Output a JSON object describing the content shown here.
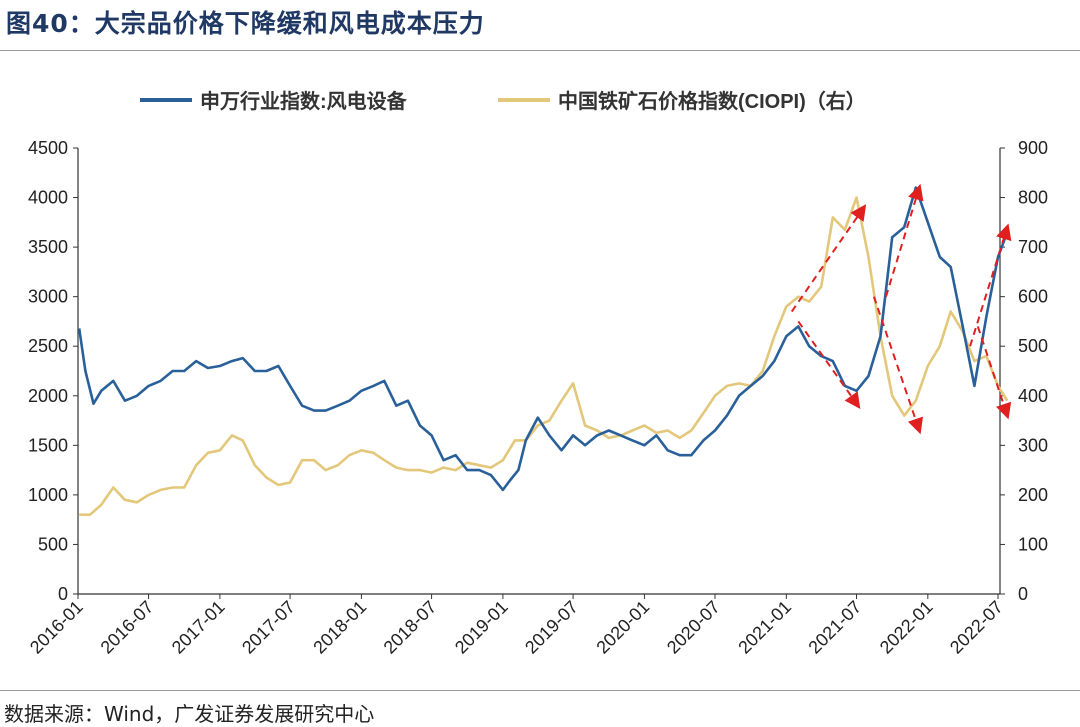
{
  "figure": {
    "title": "图40：大宗品价格下降缓和风电成本压力",
    "source": "数据来源：Wind，广发证券发展研究中心"
  },
  "chart_data": {
    "type": "line",
    "title": "",
    "legend_position": "top",
    "grid": false,
    "x_ticks": [
      "2016-01",
      "2016-07",
      "2017-01",
      "2017-07",
      "2018-01",
      "2018-07",
      "2019-01",
      "2019-07",
      "2020-01",
      "2020-07",
      "2021-01",
      "2021-07",
      "2022-01",
      "2022-07"
    ],
    "y_left": {
      "range": [
        0,
        4500
      ],
      "ticks": [
        "0",
        "500",
        "1000",
        "1500",
        "2000",
        "2500",
        "3000",
        "3500",
        "4000",
        "4500"
      ]
    },
    "y_right": {
      "range": [
        0,
        900
      ],
      "ticks": [
        "0",
        "100",
        "200",
        "300",
        "400",
        "500",
        "600",
        "700",
        "800",
        "900"
      ]
    },
    "series": [
      {
        "name": "申万行业指数:风电设备",
        "axis": "left",
        "color": "#2a6099",
        "points": [
          [
            "2016-01-04",
            2680
          ],
          [
            "2016-01-20",
            2250
          ],
          [
            "2016-02-10",
            1920
          ],
          [
            "2016-03-01",
            2050
          ],
          [
            "2016-04-01",
            2150
          ],
          [
            "2016-05-01",
            1950
          ],
          [
            "2016-06-01",
            2000
          ],
          [
            "2016-07-01",
            2100
          ],
          [
            "2016-08-01",
            2150
          ],
          [
            "2016-09-01",
            2250
          ],
          [
            "2016-10-01",
            2250
          ],
          [
            "2016-11-01",
            2350
          ],
          [
            "2016-12-01",
            2280
          ],
          [
            "2017-01-01",
            2300
          ],
          [
            "2017-02-01",
            2350
          ],
          [
            "2017-03-01",
            2380
          ],
          [
            "2017-04-01",
            2250
          ],
          [
            "2017-05-01",
            2250
          ],
          [
            "2017-06-01",
            2300
          ],
          [
            "2017-07-01",
            2100
          ],
          [
            "2017-08-01",
            1900
          ],
          [
            "2017-09-01",
            1850
          ],
          [
            "2017-10-01",
            1850
          ],
          [
            "2017-11-01",
            1900
          ],
          [
            "2017-12-01",
            1950
          ],
          [
            "2018-01-01",
            2050
          ],
          [
            "2018-02-01",
            2100
          ],
          [
            "2018-03-01",
            2150
          ],
          [
            "2018-04-01",
            1900
          ],
          [
            "2018-05-01",
            1950
          ],
          [
            "2018-06-01",
            1700
          ],
          [
            "2018-07-01",
            1600
          ],
          [
            "2018-08-01",
            1350
          ],
          [
            "2018-09-01",
            1400
          ],
          [
            "2018-10-01",
            1250
          ],
          [
            "2018-11-01",
            1250
          ],
          [
            "2018-12-01",
            1200
          ],
          [
            "2019-01-01",
            1050
          ],
          [
            "2019-01-20",
            1150
          ],
          [
            "2019-02-10",
            1250
          ],
          [
            "2019-03-01",
            1550
          ],
          [
            "2019-04-01",
            1780
          ],
          [
            "2019-05-01",
            1600
          ],
          [
            "2019-06-01",
            1450
          ],
          [
            "2019-07-01",
            1600
          ],
          [
            "2019-08-01",
            1500
          ],
          [
            "2019-09-01",
            1600
          ],
          [
            "2019-10-01",
            1650
          ],
          [
            "2019-11-01",
            1600
          ],
          [
            "2019-12-01",
            1550
          ],
          [
            "2020-01-01",
            1500
          ],
          [
            "2020-02-01",
            1600
          ],
          [
            "2020-03-01",
            1450
          ],
          [
            "2020-04-01",
            1400
          ],
          [
            "2020-05-01",
            1400
          ],
          [
            "2020-06-01",
            1550
          ],
          [
            "2020-07-01",
            1650
          ],
          [
            "2020-08-01",
            1800
          ],
          [
            "2020-09-01",
            2000
          ],
          [
            "2020-10-01",
            2100
          ],
          [
            "2020-11-01",
            2200
          ],
          [
            "2020-12-01",
            2350
          ],
          [
            "2021-01-01",
            2600
          ],
          [
            "2021-02-01",
            2700
          ],
          [
            "2021-03-01",
            2500
          ],
          [
            "2021-04-01",
            2400
          ],
          [
            "2021-05-01",
            2350
          ],
          [
            "2021-06-01",
            2100
          ],
          [
            "2021-07-01",
            2050
          ],
          [
            "2021-08-01",
            2200
          ],
          [
            "2021-09-01",
            2600
          ],
          [
            "2021-10-01",
            3600
          ],
          [
            "2021-11-01",
            3700
          ],
          [
            "2021-12-01",
            4100
          ],
          [
            "2022-01-01",
            3750
          ],
          [
            "2022-02-01",
            3400
          ],
          [
            "2022-03-01",
            3300
          ],
          [
            "2022-04-01",
            2700
          ],
          [
            "2022-05-01",
            2100
          ],
          [
            "2022-06-01",
            2800
          ],
          [
            "2022-07-01",
            3400
          ],
          [
            "2022-07-25",
            3650
          ]
        ]
      },
      {
        "name": "中国铁矿石价格指数(CIOPI)（右）",
        "axis": "right",
        "color": "#e3c77a",
        "points": [
          [
            "2016-01-04",
            160
          ],
          [
            "2016-02-01",
            160
          ],
          [
            "2016-03-01",
            180
          ],
          [
            "2016-04-01",
            215
          ],
          [
            "2016-05-01",
            190
          ],
          [
            "2016-06-01",
            185
          ],
          [
            "2016-07-01",
            200
          ],
          [
            "2016-08-01",
            210
          ],
          [
            "2016-09-01",
            215
          ],
          [
            "2016-10-01",
            215
          ],
          [
            "2016-11-01",
            260
          ],
          [
            "2016-12-01",
            285
          ],
          [
            "2017-01-01",
            290
          ],
          [
            "2017-02-01",
            320
          ],
          [
            "2017-03-01",
            310
          ],
          [
            "2017-04-01",
            260
          ],
          [
            "2017-05-01",
            235
          ],
          [
            "2017-06-01",
            220
          ],
          [
            "2017-07-01",
            225
          ],
          [
            "2017-08-01",
            270
          ],
          [
            "2017-09-01",
            270
          ],
          [
            "2017-10-01",
            250
          ],
          [
            "2017-11-01",
            260
          ],
          [
            "2017-12-01",
            280
          ],
          [
            "2018-01-01",
            290
          ],
          [
            "2018-02-01",
            285
          ],
          [
            "2018-03-01",
            270
          ],
          [
            "2018-04-01",
            255
          ],
          [
            "2018-05-01",
            250
          ],
          [
            "2018-06-01",
            250
          ],
          [
            "2018-07-01",
            245
          ],
          [
            "2018-08-01",
            255
          ],
          [
            "2018-09-01",
            250
          ],
          [
            "2018-10-01",
            265
          ],
          [
            "2018-11-01",
            260
          ],
          [
            "2018-12-01",
            255
          ],
          [
            "2019-01-01",
            270
          ],
          [
            "2019-02-01",
            310
          ],
          [
            "2019-03-01",
            310
          ],
          [
            "2019-04-01",
            340
          ],
          [
            "2019-05-01",
            350
          ],
          [
            "2019-06-01",
            390
          ],
          [
            "2019-07-01",
            425
          ],
          [
            "2019-08-01",
            340
          ],
          [
            "2019-09-01",
            330
          ],
          [
            "2019-10-01",
            315
          ],
          [
            "2019-11-01",
            320
          ],
          [
            "2019-12-01",
            330
          ],
          [
            "2020-01-01",
            340
          ],
          [
            "2020-02-01",
            325
          ],
          [
            "2020-03-01",
            330
          ],
          [
            "2020-04-01",
            315
          ],
          [
            "2020-05-01",
            330
          ],
          [
            "2020-06-01",
            365
          ],
          [
            "2020-07-01",
            400
          ],
          [
            "2020-08-01",
            420
          ],
          [
            "2020-09-01",
            425
          ],
          [
            "2020-10-01",
            420
          ],
          [
            "2020-11-01",
            450
          ],
          [
            "2020-12-01",
            520
          ],
          [
            "2021-01-01",
            580
          ],
          [
            "2021-02-01",
            600
          ],
          [
            "2021-03-01",
            590
          ],
          [
            "2021-04-01",
            620
          ],
          [
            "2021-05-01",
            760
          ],
          [
            "2021-06-01",
            735
          ],
          [
            "2021-07-01",
            800
          ],
          [
            "2021-08-01",
            680
          ],
          [
            "2021-09-01",
            520
          ],
          [
            "2021-10-01",
            400
          ],
          [
            "2021-11-01",
            360
          ],
          [
            "2021-12-01",
            390
          ],
          [
            "2022-01-01",
            460
          ],
          [
            "2022-02-01",
            500
          ],
          [
            "2022-03-01",
            570
          ],
          [
            "2022-04-01",
            530
          ],
          [
            "2022-05-01",
            470
          ],
          [
            "2022-06-01",
            480
          ],
          [
            "2022-07-01",
            420
          ],
          [
            "2022-07-25",
            390
          ]
        ]
      }
    ],
    "annotations": {
      "style": "red dashed arrows",
      "color": "#e02020",
      "arrows": [
        {
          "axis": "right",
          "from": [
            "2021-01-15",
            570
          ],
          "to": [
            "2021-07-20",
            780
          ]
        },
        {
          "axis": "left",
          "from": [
            "2021-02-01",
            2750
          ],
          "to": [
            "2021-07-05",
            1900
          ]
        },
        {
          "axis": "right",
          "from": [
            "2021-08-15",
            600
          ],
          "to": [
            "2021-12-10",
            330
          ]
        },
        {
          "axis": "left",
          "from": [
            "2021-09-15",
            3000
          ],
          "to": [
            "2021-12-10",
            4100
          ]
        },
        {
          "axis": "left",
          "from": [
            "2022-04-20",
            2500
          ],
          "to": [
            "2022-07-25",
            3700
          ]
        },
        {
          "axis": "right",
          "from": [
            "2022-05-10",
            540
          ],
          "to": [
            "2022-07-25",
            360
          ]
        }
      ]
    }
  }
}
